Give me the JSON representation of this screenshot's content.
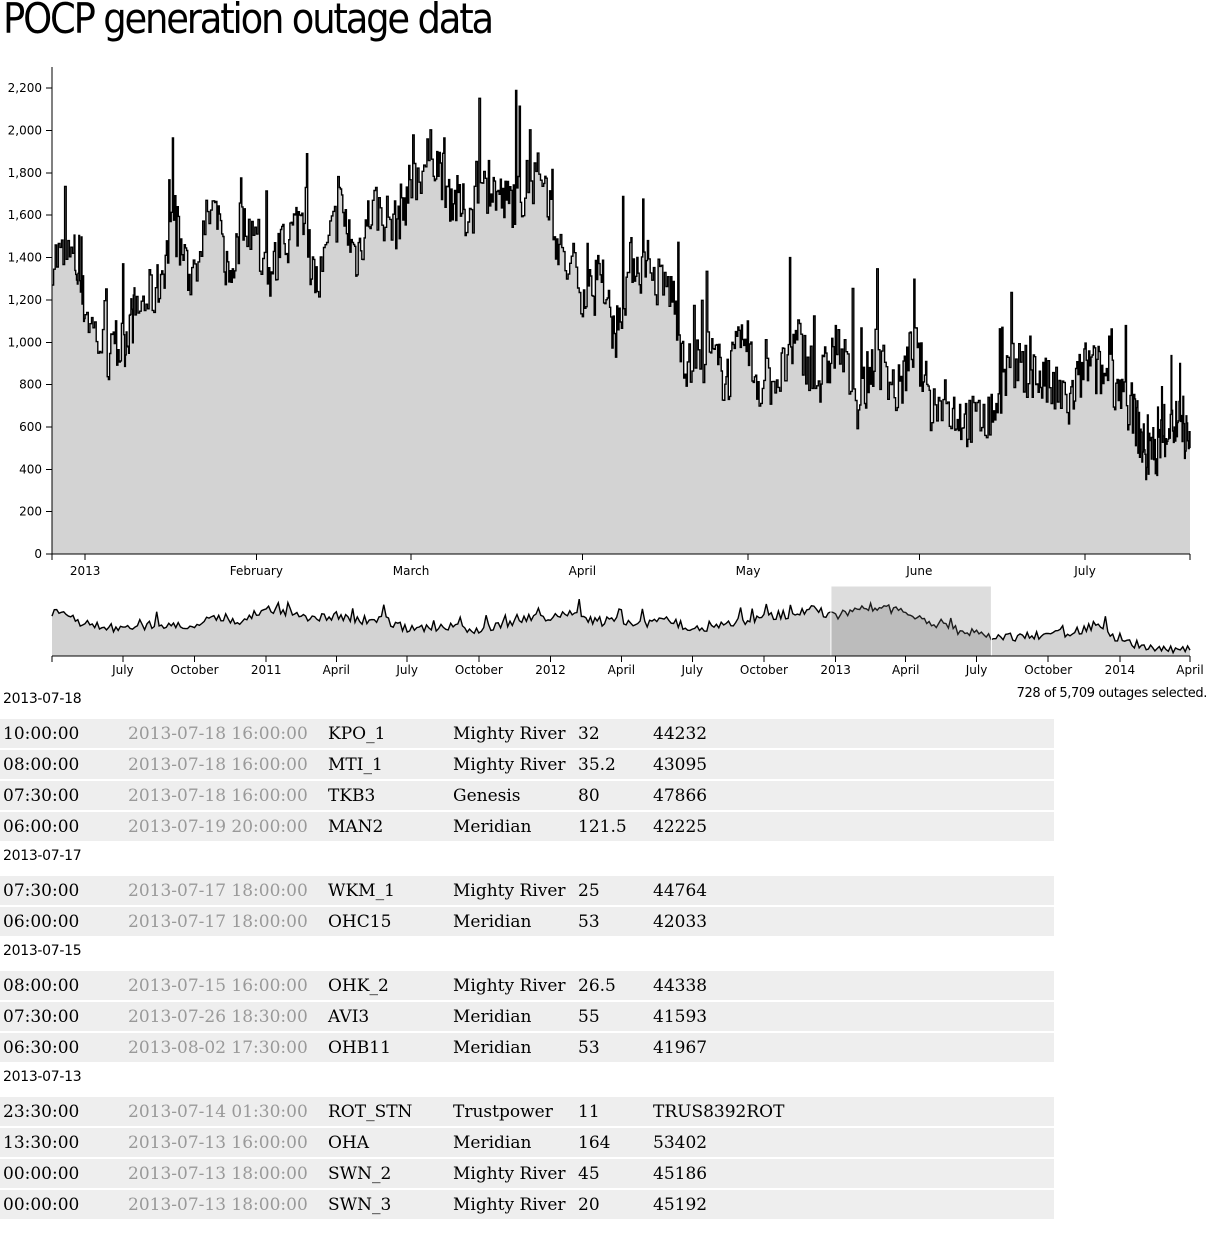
{
  "title": "POCP generation outage data",
  "selected_text": "728 of 5,709 outages selected.",
  "chart_data": [
    {
      "type": "area",
      "name": "main",
      "ylim": [
        0,
        2300
      ],
      "y_ticks": [
        "0",
        "200",
        "400",
        "600",
        "800",
        "1,000",
        "1,200",
        "1,400",
        "1,600",
        "1,800",
        "2,000",
        "2,200"
      ],
      "y_tick_values": [
        0,
        200,
        400,
        600,
        800,
        1000,
        1200,
        1400,
        1600,
        1800,
        2000,
        2200
      ],
      "x_ticks": [
        "2013",
        "February",
        "March",
        "April",
        "May",
        "June",
        "July"
      ],
      "x_tick_dates": [
        "2013-01-01",
        "2013-02-01",
        "2013-03-01",
        "2013-04-01",
        "2013-05-01",
        "2013-06-01",
        "2013-07-01"
      ],
      "x_domain": [
        "2012-12-26",
        "2013-07-20"
      ],
      "grid": false,
      "series": [
        {
          "x": [
            "2012-12-26",
            "2012-12-30",
            "2013-01-01",
            "2013-01-05",
            "2013-01-08",
            "2013-01-10",
            "2013-01-14",
            "2013-01-17",
            "2013-01-20",
            "2013-01-24",
            "2013-01-27",
            "2013-01-30",
            "2013-02-03",
            "2013-02-06",
            "2013-02-09",
            "2013-02-12",
            "2013-02-16",
            "2013-02-19",
            "2013-02-22",
            "2013-02-26",
            "2013-03-01",
            "2013-03-05",
            "2013-03-08",
            "2013-03-11",
            "2013-03-15",
            "2013-03-18",
            "2013-03-21",
            "2013-03-25",
            "2013-03-28",
            "2013-04-01",
            "2013-04-04",
            "2013-04-07",
            "2013-04-10",
            "2013-04-13",
            "2013-04-17",
            "2013-04-20",
            "2013-04-24",
            "2013-04-27",
            "2013-04-30",
            "2013-05-03",
            "2013-05-07",
            "2013-05-10",
            "2013-05-14",
            "2013-05-17",
            "2013-05-21",
            "2013-05-24",
            "2013-05-28",
            "2013-05-31",
            "2013-06-03",
            "2013-06-07",
            "2013-06-10",
            "2013-06-14",
            "2013-06-17",
            "2013-06-21",
            "2013-06-24",
            "2013-06-28",
            "2013-07-01",
            "2013-07-04",
            "2013-07-07",
            "2013-07-10",
            "2013-07-12",
            "2013-07-14",
            "2013-07-16",
            "2013-07-18",
            "2013-07-20"
          ],
          "values": [
            1400,
            1400,
            1150,
            910,
            1000,
            1150,
            1250,
            1550,
            1300,
            1650,
            1300,
            1600,
            1300,
            1450,
            1600,
            1250,
            1650,
            1400,
            1650,
            1550,
            1750,
            1900,
            1700,
            1600,
            1750,
            1650,
            1700,
            1800,
            1400,
            1250,
            1250,
            1050,
            1400,
            1300,
            1250,
            870,
            950,
            820,
            1000,
            800,
            850,
            1000,
            800,
            1000,
            700,
            950,
            750,
            1000,
            700,
            680,
            620,
            650,
            870,
            870,
            800,
            700,
            900,
            850,
            800,
            650,
            450,
            500,
            600,
            620,
            500
          ]
        }
      ]
    },
    {
      "type": "area",
      "name": "overview",
      "x_ticks": [
        "July",
        "October",
        "2011",
        "April",
        "July",
        "October",
        "2012",
        "April",
        "July",
        "October",
        "2013",
        "April",
        "July",
        "October",
        "2014",
        "April"
      ],
      "x_tick_dates": [
        "2010-07-01",
        "2010-10-01",
        "2011-01-01",
        "2011-04-01",
        "2011-07-01",
        "2011-10-01",
        "2012-01-01",
        "2012-04-01",
        "2012-07-01",
        "2012-10-01",
        "2013-01-01",
        "2013-04-01",
        "2013-07-01",
        "2013-10-01",
        "2014-01-01",
        "2014-04-01"
      ],
      "x_domain": [
        "2010-04-01",
        "2014-04-01"
      ],
      "ylim": [
        0,
        2300
      ],
      "selection": [
        "2012-12-26",
        "2013-07-20"
      ],
      "series": [
        {
          "x": [
            "2010-04-01",
            "2010-05-01",
            "2010-06-01",
            "2010-07-01",
            "2010-08-01",
            "2010-09-01",
            "2010-10-01",
            "2010-11-01",
            "2010-12-01",
            "2011-01-01",
            "2011-02-01",
            "2011-03-01",
            "2011-04-01",
            "2011-05-01",
            "2011-06-01",
            "2011-07-01",
            "2011-08-01",
            "2011-09-01",
            "2011-10-01",
            "2011-11-01",
            "2011-12-01",
            "2012-01-01",
            "2012-02-01",
            "2012-03-01",
            "2012-04-01",
            "2012-05-01",
            "2012-06-01",
            "2012-07-01",
            "2012-08-01",
            "2012-09-01",
            "2012-10-01",
            "2012-11-01",
            "2012-12-01",
            "2013-01-01",
            "2013-02-01",
            "2013-03-01",
            "2013-04-01",
            "2013-05-01",
            "2013-06-01",
            "2013-07-01",
            "2013-08-01",
            "2013-09-01",
            "2013-10-01",
            "2013-11-01",
            "2013-12-01",
            "2014-01-01",
            "2014-02-01",
            "2014-03-01",
            "2014-04-01"
          ],
          "values": [
            1500,
            1200,
            1000,
            900,
            1050,
            950,
            1100,
            1250,
            1200,
            1600,
            1450,
            1300,
            1350,
            1200,
            1250,
            900,
            1000,
            950,
            900,
            1100,
            1300,
            1250,
            1450,
            1150,
            1200,
            1100,
            1200,
            950,
            1000,
            1150,
            1350,
            1400,
            1600,
            1350,
            1600,
            1700,
            1400,
            1100,
            900,
            800,
            600,
            650,
            750,
            800,
            1050,
            500,
            300,
            200,
            200
          ]
        }
      ]
    }
  ],
  "days": [
    {
      "date": "2013-07-18",
      "rows": [
        {
          "start": "10:00:00",
          "end": "2013-07-18 16:00:00",
          "unit": "KPO_1",
          "company": "Mighty River",
          "mw": "32",
          "id": "44232"
        },
        {
          "start": "08:00:00",
          "end": "2013-07-18 16:00:00",
          "unit": "MTI_1",
          "company": "Mighty River",
          "mw": "35.2",
          "id": "43095"
        },
        {
          "start": "07:30:00",
          "end": "2013-07-18 16:00:00",
          "unit": "TKB3",
          "company": "Genesis",
          "mw": "80",
          "id": "47866"
        },
        {
          "start": "06:00:00",
          "end": "2013-07-19 20:00:00",
          "unit": "MAN2",
          "company": "Meridian",
          "mw": "121.5",
          "id": "42225"
        }
      ]
    },
    {
      "date": "2013-07-17",
      "rows": [
        {
          "start": "07:30:00",
          "end": "2013-07-17 18:00:00",
          "unit": "WKM_1",
          "company": "Mighty River",
          "mw": "25",
          "id": "44764"
        },
        {
          "start": "06:00:00",
          "end": "2013-07-17 18:00:00",
          "unit": "OHC15",
          "company": "Meridian",
          "mw": "53",
          "id": "42033"
        }
      ]
    },
    {
      "date": "2013-07-15",
      "rows": [
        {
          "start": "08:00:00",
          "end": "2013-07-15 16:00:00",
          "unit": "OHK_2",
          "company": "Mighty River",
          "mw": "26.5",
          "id": "44338"
        },
        {
          "start": "07:30:00",
          "end": "2013-07-26 18:30:00",
          "unit": "AVI3",
          "company": "Meridian",
          "mw": "55",
          "id": "41593"
        },
        {
          "start": "06:30:00",
          "end": "2013-08-02 17:30:00",
          "unit": "OHB11",
          "company": "Meridian",
          "mw": "53",
          "id": "41967"
        }
      ]
    },
    {
      "date": "2013-07-13",
      "rows": [
        {
          "start": "23:30:00",
          "end": "2013-07-14 01:30:00",
          "unit": "ROT_STN",
          "company": "Trustpower",
          "mw": "11",
          "id": "TRUS8392ROT"
        },
        {
          "start": "13:30:00",
          "end": "2013-07-13 16:00:00",
          "unit": "OHA",
          "company": "Meridian",
          "mw": "164",
          "id": "53402"
        },
        {
          "start": "00:00:00",
          "end": "2013-07-13 18:00:00",
          "unit": "SWN_2",
          "company": "Mighty River",
          "mw": "45",
          "id": "45186"
        },
        {
          "start": "00:00:00",
          "end": "2013-07-13 18:00:00",
          "unit": "SWN_3",
          "company": "Mighty River",
          "mw": "20",
          "id": "45192"
        }
      ]
    }
  ]
}
